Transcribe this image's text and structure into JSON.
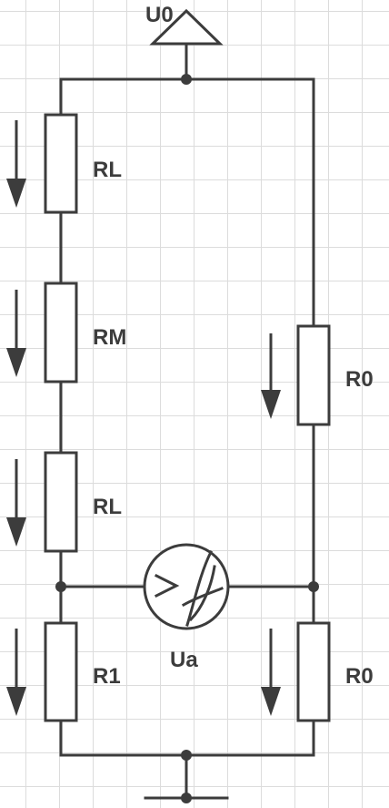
{
  "labels": {
    "supply": "U0",
    "rl_top": "RL",
    "rm": "RM",
    "rl_bottom": "RL",
    "r0_upper": "R0",
    "meter": "Ua",
    "r1": "R1",
    "r0_lower": "R0"
  },
  "icons": {
    "supply": "triangle-terminal-icon",
    "meter": "voltmeter-icon",
    "ground": "ground-icon",
    "current_arrow": "arrow-down-icon"
  },
  "colors": {
    "stroke": "#3c3c3c",
    "grid": "#dcdcdc",
    "background": "#ffffff"
  }
}
